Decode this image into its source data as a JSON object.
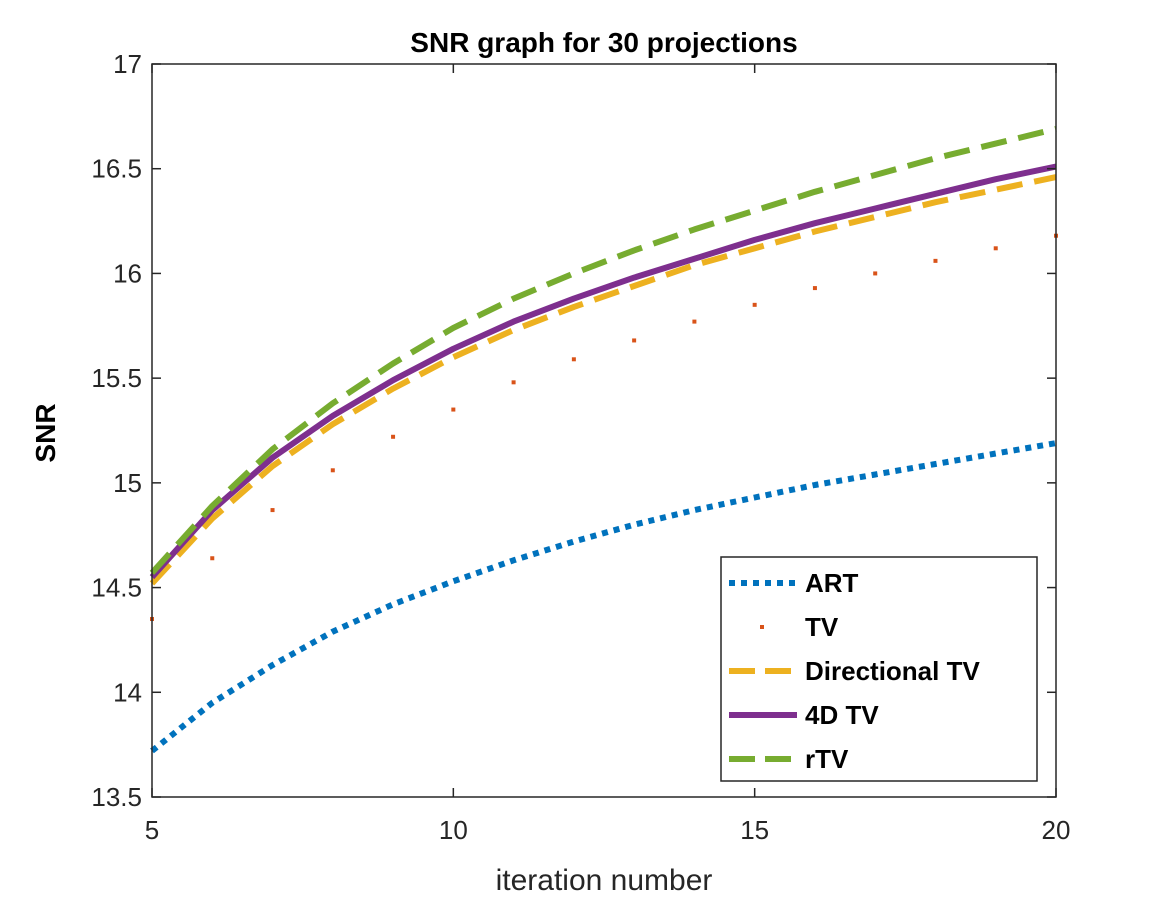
{
  "chart_data": {
    "type": "line",
    "title": "SNR graph for 30 projections",
    "xlabel": "iteration number",
    "ylabel": "SNR",
    "xlim": [
      5,
      20
    ],
    "ylim": [
      13.5,
      17
    ],
    "xticks": [
      5,
      10,
      15,
      20
    ],
    "xtick_labels": [
      "5",
      "10",
      "15",
      "20"
    ],
    "yticks": [
      13.5,
      14,
      14.5,
      15,
      15.5,
      16,
      16.5,
      17
    ],
    "ytick_labels": [
      "13.5",
      "14",
      "14.5",
      "15",
      "15.5",
      "16",
      "16.5",
      "17"
    ],
    "grid": false,
    "legend_position": "bottom-right",
    "x": [
      5,
      6,
      7,
      8,
      9,
      10,
      11,
      12,
      13,
      14,
      15,
      16,
      17,
      18,
      19,
      20
    ],
    "series": [
      {
        "name": "ART",
        "color": "#0072BD",
        "style": "dotted",
        "values": [
          13.72,
          13.95,
          14.13,
          14.29,
          14.42,
          14.53,
          14.63,
          14.72,
          14.8,
          14.87,
          14.93,
          14.99,
          15.04,
          15.09,
          15.14,
          15.19
        ]
      },
      {
        "name": "TV",
        "color": "#D95319",
        "style": "sparse-dotted",
        "values": [
          14.35,
          14.64,
          14.87,
          15.06,
          15.22,
          15.35,
          15.48,
          15.59,
          15.68,
          15.77,
          15.85,
          15.93,
          16.0,
          16.06,
          16.12,
          16.18
        ]
      },
      {
        "name": "Directional TV",
        "color": "#EDB120",
        "style": "dashed",
        "values": [
          14.52,
          14.83,
          15.08,
          15.28,
          15.45,
          15.6,
          15.73,
          15.84,
          15.94,
          16.04,
          16.12,
          16.2,
          16.27,
          16.34,
          16.4,
          16.46
        ]
      },
      {
        "name": "4D TV",
        "color": "#7E2F8E",
        "style": "solid",
        "values": [
          14.55,
          14.87,
          15.12,
          15.32,
          15.49,
          15.64,
          15.77,
          15.88,
          15.98,
          16.07,
          16.16,
          16.24,
          16.31,
          16.38,
          16.45,
          16.51
        ]
      },
      {
        "name": "rTV",
        "color": "#77AC30",
        "style": "dashed",
        "values": [
          14.57,
          14.89,
          15.16,
          15.38,
          15.57,
          15.74,
          15.88,
          16.0,
          16.11,
          16.21,
          16.3,
          16.39,
          16.47,
          16.55,
          16.62,
          16.69
        ]
      }
    ]
  }
}
